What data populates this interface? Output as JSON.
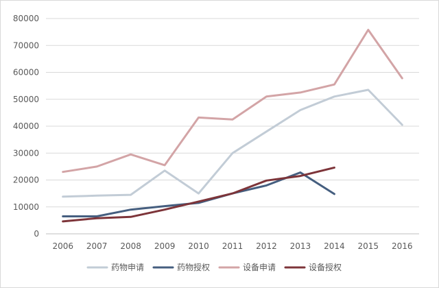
{
  "chart_data": {
    "type": "line",
    "title": "",
    "xlabel": "",
    "ylabel": "",
    "categories": [
      "2006",
      "2007",
      "2008",
      "2009",
      "2010",
      "2011",
      "2012",
      "2013",
      "2014",
      "2015",
      "2016"
    ],
    "ylim": [
      0,
      80000
    ],
    "yticks": [
      0,
      10000,
      20000,
      30000,
      40000,
      50000,
      60000,
      70000,
      80000
    ],
    "yticks_labels": [
      "0",
      "10000",
      "20000",
      "30000",
      "40000",
      "50000",
      "60000",
      "70000",
      "80000"
    ],
    "grid": true,
    "legend_position": "bottom",
    "series": [
      {
        "name": "药物申请",
        "color": "#c2ccd6",
        "values": [
          13800,
          14200,
          14500,
          23500,
          15000,
          30000,
          38000,
          46000,
          51000,
          53500,
          40500
        ]
      },
      {
        "name": "药物授权",
        "color": "#455e7f",
        "values": [
          6500,
          6500,
          9000,
          10300,
          11500,
          15000,
          18000,
          22800,
          14800,
          null,
          null
        ]
      },
      {
        "name": "设备申请",
        "color": "#d3a4a6",
        "values": [
          23000,
          25000,
          29500,
          25500,
          43200,
          42500,
          51000,
          52500,
          55500,
          75800,
          57800
        ]
      },
      {
        "name": "设备授权",
        "color": "#7d3439",
        "values": [
          4600,
          5800,
          6300,
          9000,
          12000,
          15000,
          19800,
          21500,
          24600,
          null,
          null
        ]
      }
    ]
  }
}
